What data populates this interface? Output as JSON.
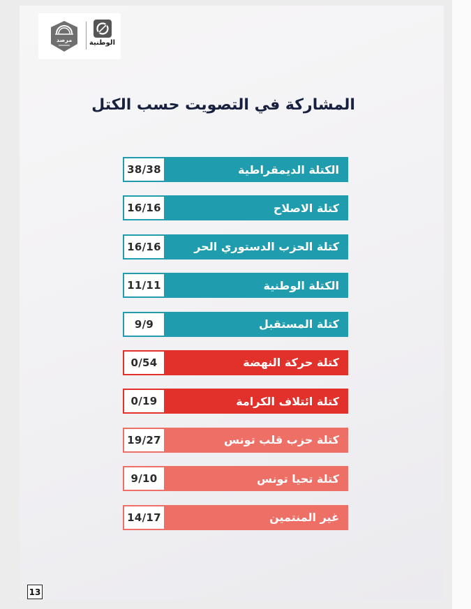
{
  "header": {
    "logo_left_text": "مرصد",
    "logo_right_text": "الوطنية"
  },
  "title": "المشاركة في التصويت حسب الكتل",
  "blocs": [
    {
      "name": "الكتلة الديمقراطية",
      "count": "38/38",
      "color": "#1f9cad"
    },
    {
      "name": "كتلة الاصلاح",
      "count": "16/16",
      "color": "#1f9cad"
    },
    {
      "name": "كتلة الحزب الدستوري الحر",
      "count": "16/16",
      "color": "#1f9cad"
    },
    {
      "name": "الكتلة الوطنية",
      "count": "11/11",
      "color": "#1f9cad"
    },
    {
      "name": "كتلة المستقبل",
      "count": "9/9",
      "color": "#1f9cad"
    },
    {
      "name": "كتلة حركة النهضة",
      "count": "0/54",
      "color": "#e2312b"
    },
    {
      "name": "كتلة ائتلاف الكرامة",
      "count": "0/19",
      "color": "#e2312b"
    },
    {
      "name": "كتلة حزب قلب تونس",
      "count": "19/27",
      "color": "#ee6f66"
    },
    {
      "name": "كتلة تحيا تونس",
      "count": "9/10",
      "color": "#ee6f66"
    },
    {
      "name": "غير المنتمين",
      "count": "14/17",
      "color": "#ee6f66"
    }
  ],
  "page_number": "13"
}
